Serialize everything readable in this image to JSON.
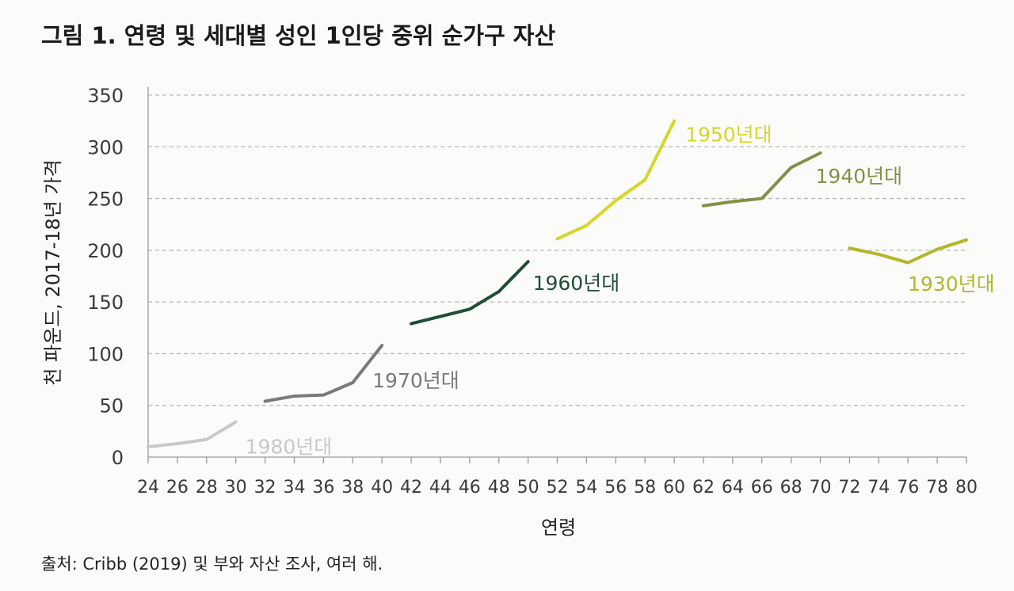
{
  "title": "그림 1. 연령 및 세대별 성인 1인당 중위 순가구 자산",
  "source": "출처: Cribb (2019) 및 부와 자산 조사, 여러 해.",
  "chart_data": {
    "type": "line",
    "title": "그림 1. 연령 및 세대별 성인 1인당 중위 순가구 자산",
    "xlabel": "연령",
    "ylabel": "천 파운드, 2017-18년 가격",
    "xlim": [
      24,
      80
    ],
    "ylim": [
      0,
      350
    ],
    "x_ticks": [
      24,
      26,
      28,
      30,
      32,
      34,
      36,
      38,
      40,
      42,
      44,
      46,
      48,
      50,
      52,
      54,
      56,
      58,
      60,
      62,
      64,
      66,
      68,
      70,
      72,
      74,
      76,
      78,
      80
    ],
    "y_ticks": [
      0,
      50,
      100,
      150,
      200,
      250,
      300,
      350
    ],
    "grid": "horizontal dashed",
    "series": [
      {
        "name": "1980년대",
        "color": "#c8c8c8",
        "x": [
          24,
          26,
          28,
          30
        ],
        "y": [
          10,
          13,
          17,
          34
        ]
      },
      {
        "name": "1970년대",
        "color": "#7a7a7a",
        "x": [
          32,
          34,
          36,
          38,
          40
        ],
        "y": [
          54,
          59,
          60,
          72,
          108
        ]
      },
      {
        "name": "1960년대",
        "color": "#1f4d36",
        "x": [
          42,
          44,
          46,
          48,
          50
        ],
        "y": [
          129,
          136,
          143,
          160,
          189
        ]
      },
      {
        "name": "1950년대",
        "color": "#d6d62a",
        "x": [
          52,
          54,
          56,
          58,
          60
        ],
        "y": [
          211,
          224,
          248,
          268,
          325
        ]
      },
      {
        "name": "1940년대",
        "color": "#849048",
        "x": [
          62,
          64,
          66,
          68,
          70
        ],
        "y": [
          243,
          247,
          250,
          280,
          294
        ]
      },
      {
        "name": "1930년대",
        "color": "#b2b82a",
        "x": [
          72,
          74,
          76,
          78,
          80
        ],
        "y": [
          202,
          196,
          188,
          201,
          210
        ]
      }
    ]
  }
}
